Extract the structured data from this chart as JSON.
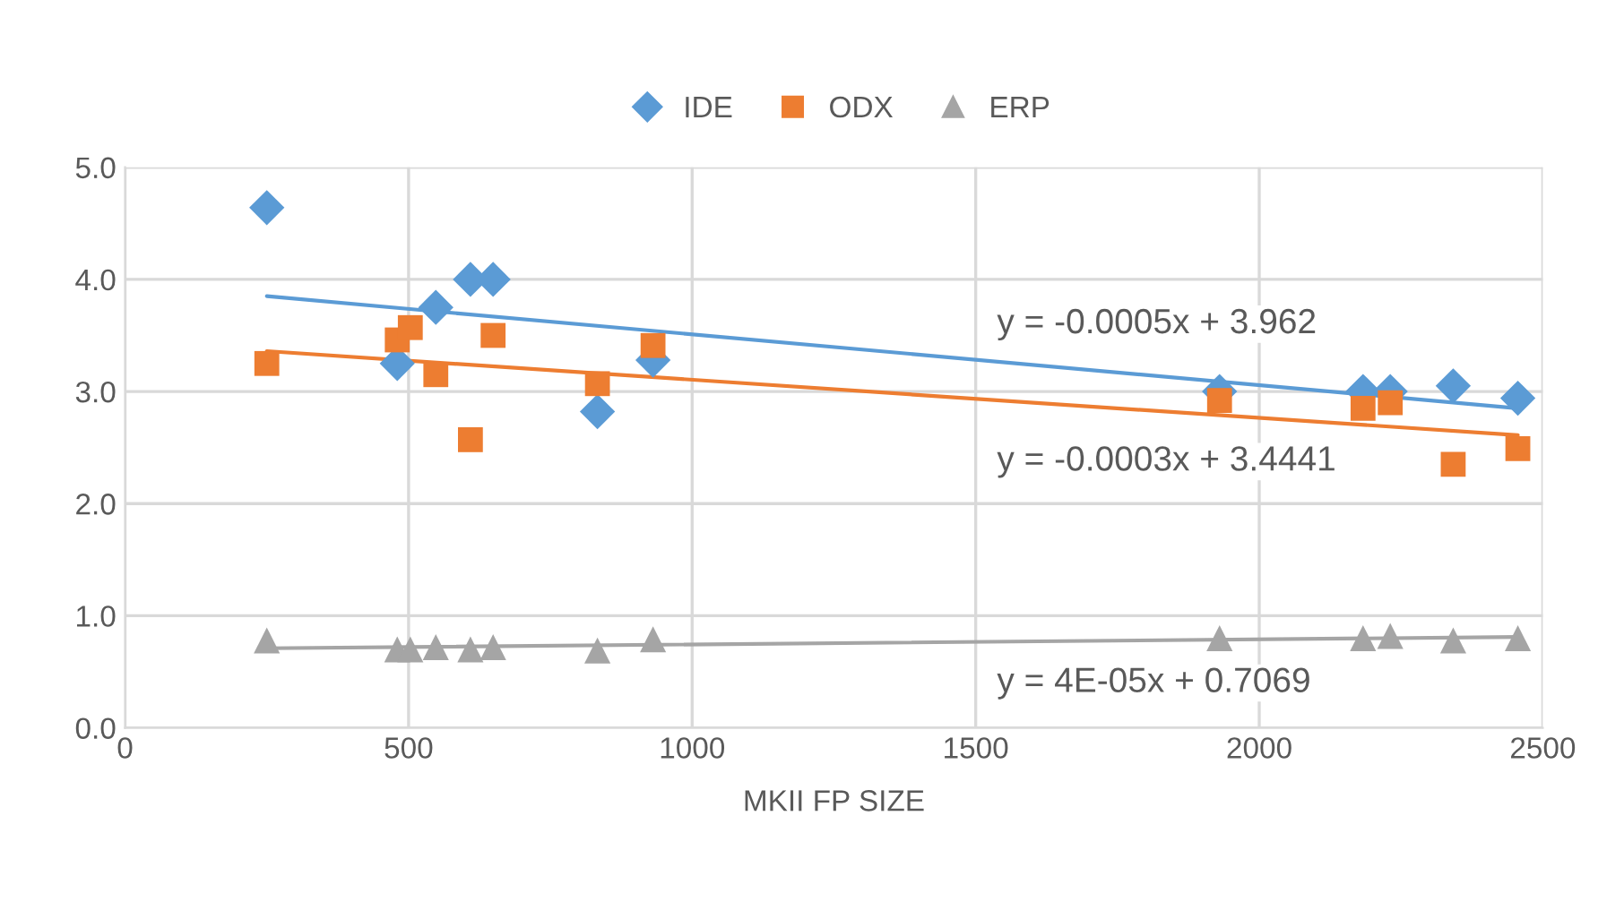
{
  "chart_data": {
    "type": "scatter",
    "xlabel": "MKII FP SIZE",
    "xlim": [
      0,
      2500
    ],
    "xticks": [
      0,
      500,
      1000,
      1500,
      2000,
      2500
    ],
    "ylim": [
      0,
      5
    ],
    "yticks": [
      {
        "value": 0,
        "label": "0.0"
      },
      {
        "value": 1,
        "label": "1.0"
      },
      {
        "value": 2,
        "label": "2.0"
      },
      {
        "value": 3,
        "label": "3.0"
      },
      {
        "value": 4,
        "label": "4.0"
      },
      {
        "value": 5,
        "label": "5.0"
      }
    ],
    "grid": true,
    "legend": "top",
    "series": [
      {
        "name": "IDE",
        "color": "#5b9bd5",
        "marker": "diamond",
        "x": [
          250,
          480,
          548,
          609,
          649,
          833,
          931,
          1930,
          2183,
          2231,
          2342,
          2456
        ],
        "values": [
          4.64,
          3.25,
          3.75,
          4.0,
          4.0,
          2.82,
          3.28,
          3.0,
          3.0,
          3.0,
          3.05,
          2.94
        ]
      },
      {
        "name": "ODX",
        "color": "#ed7d31",
        "marker": "square",
        "x": [
          250,
          480,
          503,
          548,
          609,
          649,
          833,
          931,
          1930,
          2183,
          2231,
          2342,
          2456
        ],
        "values": [
          3.25,
          3.46,
          3.57,
          3.15,
          2.57,
          3.5,
          3.07,
          3.41,
          2.92,
          2.85,
          2.9,
          2.35,
          2.49
        ]
      },
      {
        "name": "ERP",
        "color": "#a5a5a5",
        "marker": "triangle",
        "x": [
          250,
          480,
          503,
          548,
          609,
          649,
          833,
          931,
          1930,
          2183,
          2231,
          2342,
          2456
        ],
        "values": [
          0.78,
          0.7,
          0.7,
          0.72,
          0.7,
          0.72,
          0.69,
          0.79,
          0.8,
          0.8,
          0.82,
          0.78,
          0.8
        ]
      },
      {
        "type": "line",
        "color": "#5b9bd5",
        "x": [
          250,
          2456
        ],
        "values": [
          3.85,
          2.85
        ]
      },
      {
        "type": "line",
        "color": "#ed7d31",
        "x": [
          250,
          2456
        ],
        "values": [
          3.36,
          2.61
        ]
      },
      {
        "type": "line",
        "color": "#a5a5a5",
        "x": [
          250,
          2456
        ],
        "values": [
          0.71,
          0.81
        ]
      }
    ],
    "annotations": [
      "y = -0.0005x + 3.962",
      "y = -0.0003x + 3.4441",
      "y = 4E-05x + 0.7069"
    ]
  }
}
